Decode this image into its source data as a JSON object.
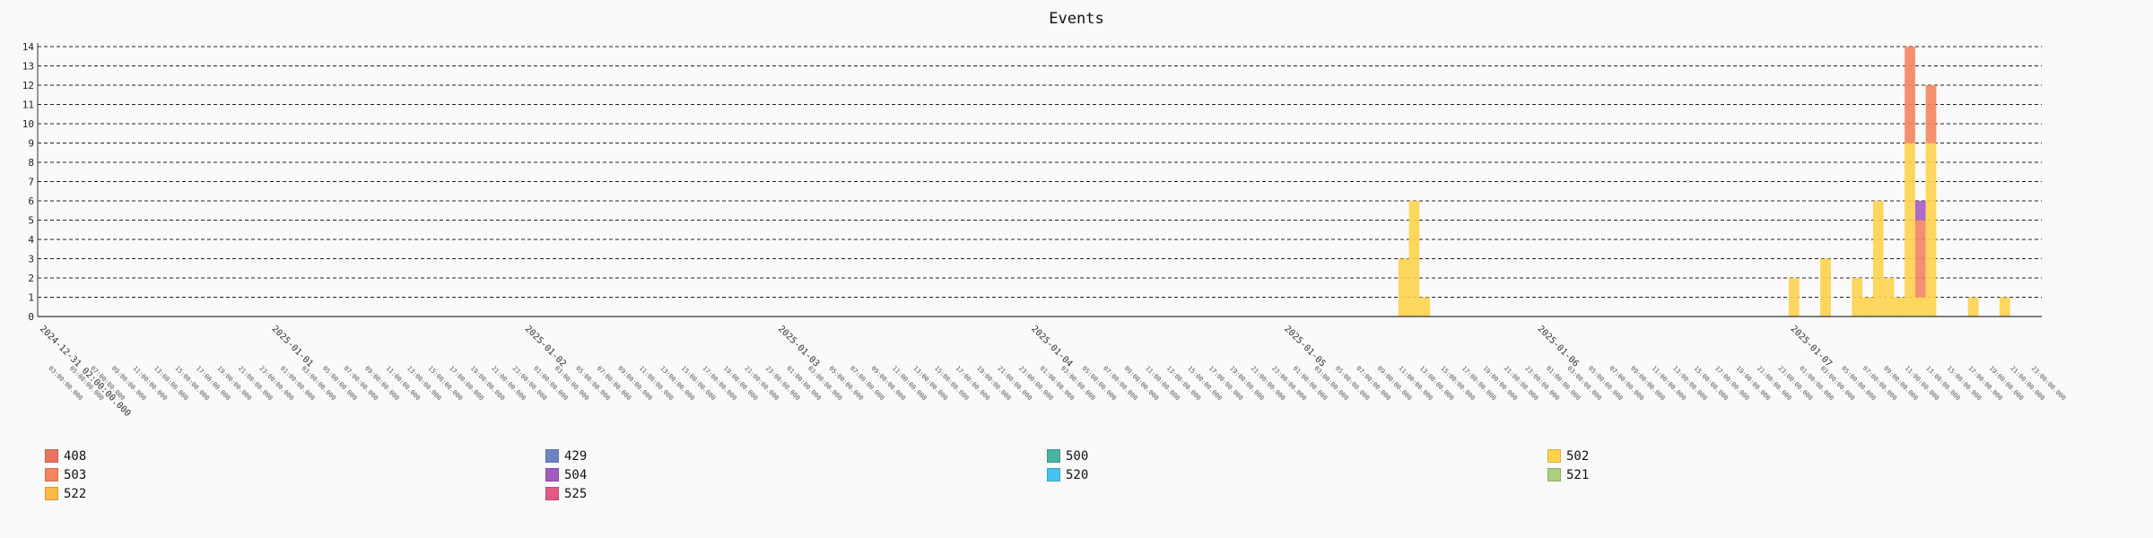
{
  "chart_data": {
    "type": "bar",
    "stacked": true,
    "title": "Events",
    "xlabel": "",
    "ylabel": "",
    "ylim": [
      0,
      14
    ],
    "yticks": [
      0,
      1,
      2,
      3,
      4,
      5,
      6,
      7,
      8,
      9,
      10,
      11,
      12,
      13,
      14
    ],
    "grid": true,
    "legend_position": "bottom",
    "x_start": "2024-12-31 02:00",
    "x_end": "2025-01-08 00:00",
    "bin_hours": 1,
    "date_ticks": [
      {
        "time": "2024-12-31 02:00",
        "label": "2024-12-31 02:00:00.000"
      },
      {
        "time": "2025-01-01 00:00",
        "label": "2025-01-01"
      },
      {
        "time": "2025-01-02 00:00",
        "label": "2025-01-02"
      },
      {
        "time": "2025-01-03 00:00",
        "label": "2025-01-03"
      },
      {
        "time": "2025-01-04 00:00",
        "label": "2025-01-04"
      },
      {
        "time": "2025-01-05 00:00",
        "label": "2025-01-05"
      },
      {
        "time": "2025-01-06 00:00",
        "label": "2025-01-06"
      },
      {
        "time": "2025-01-07 00:00",
        "label": "2025-01-07"
      }
    ],
    "legend": [
      {
        "name": "408",
        "color": "#e8735f"
      },
      {
        "name": "429",
        "color": "#6f82c4"
      },
      {
        "name": "500",
        "color": "#49b3a3"
      },
      {
        "name": "502",
        "color": "#ffd24d"
      },
      {
        "name": "503",
        "color": "#f4845e"
      },
      {
        "name": "504",
        "color": "#a35bc2"
      },
      {
        "name": "520",
        "color": "#45c2ee"
      },
      {
        "name": "521",
        "color": "#a9d07d"
      },
      {
        "name": "522",
        "color": "#fbb845"
      },
      {
        "name": "525",
        "color": "#e2598a"
      }
    ],
    "bars": [
      {
        "time": "2025-01-05 11:00",
        "stack": [
          {
            "series": "502",
            "value": 3
          }
        ]
      },
      {
        "time": "2025-01-05 12:00",
        "stack": [
          {
            "series": "502",
            "value": 6
          }
        ]
      },
      {
        "time": "2025-01-05 13:00",
        "stack": [
          {
            "series": "502",
            "value": 1
          }
        ]
      },
      {
        "time": "2025-01-07 00:00",
        "stack": [
          {
            "series": "502",
            "value": 2
          }
        ]
      },
      {
        "time": "2025-01-07 03:00",
        "stack": [
          {
            "series": "502",
            "value": 3
          }
        ]
      },
      {
        "time": "2025-01-07 06:00",
        "stack": [
          {
            "series": "502",
            "value": 2
          }
        ]
      },
      {
        "time": "2025-01-07 07:00",
        "stack": [
          {
            "series": "502",
            "value": 1
          }
        ]
      },
      {
        "time": "2025-01-07 08:00",
        "stack": [
          {
            "series": "502",
            "value": 6
          }
        ]
      },
      {
        "time": "2025-01-07 09:00",
        "stack": [
          {
            "series": "502",
            "value": 2
          }
        ]
      },
      {
        "time": "2025-01-07 10:00",
        "stack": [
          {
            "series": "502",
            "value": 1
          }
        ]
      },
      {
        "time": "2025-01-07 11:00",
        "stack": [
          {
            "series": "502",
            "value": 9
          },
          {
            "series": "503",
            "value": 5
          }
        ]
      },
      {
        "time": "2025-01-07 12:00",
        "stack": [
          {
            "series": "502",
            "value": 1
          },
          {
            "series": "503",
            "value": 4
          },
          {
            "series": "504",
            "value": 1
          }
        ]
      },
      {
        "time": "2025-01-07 13:00",
        "stack": [
          {
            "series": "502",
            "value": 9
          },
          {
            "series": "503",
            "value": 3
          }
        ]
      },
      {
        "time": "2025-01-07 17:00",
        "stack": [
          {
            "series": "502",
            "value": 1
          }
        ]
      },
      {
        "time": "2025-01-07 20:00",
        "stack": [
          {
            "series": "502",
            "value": 1
          }
        ]
      }
    ]
  }
}
